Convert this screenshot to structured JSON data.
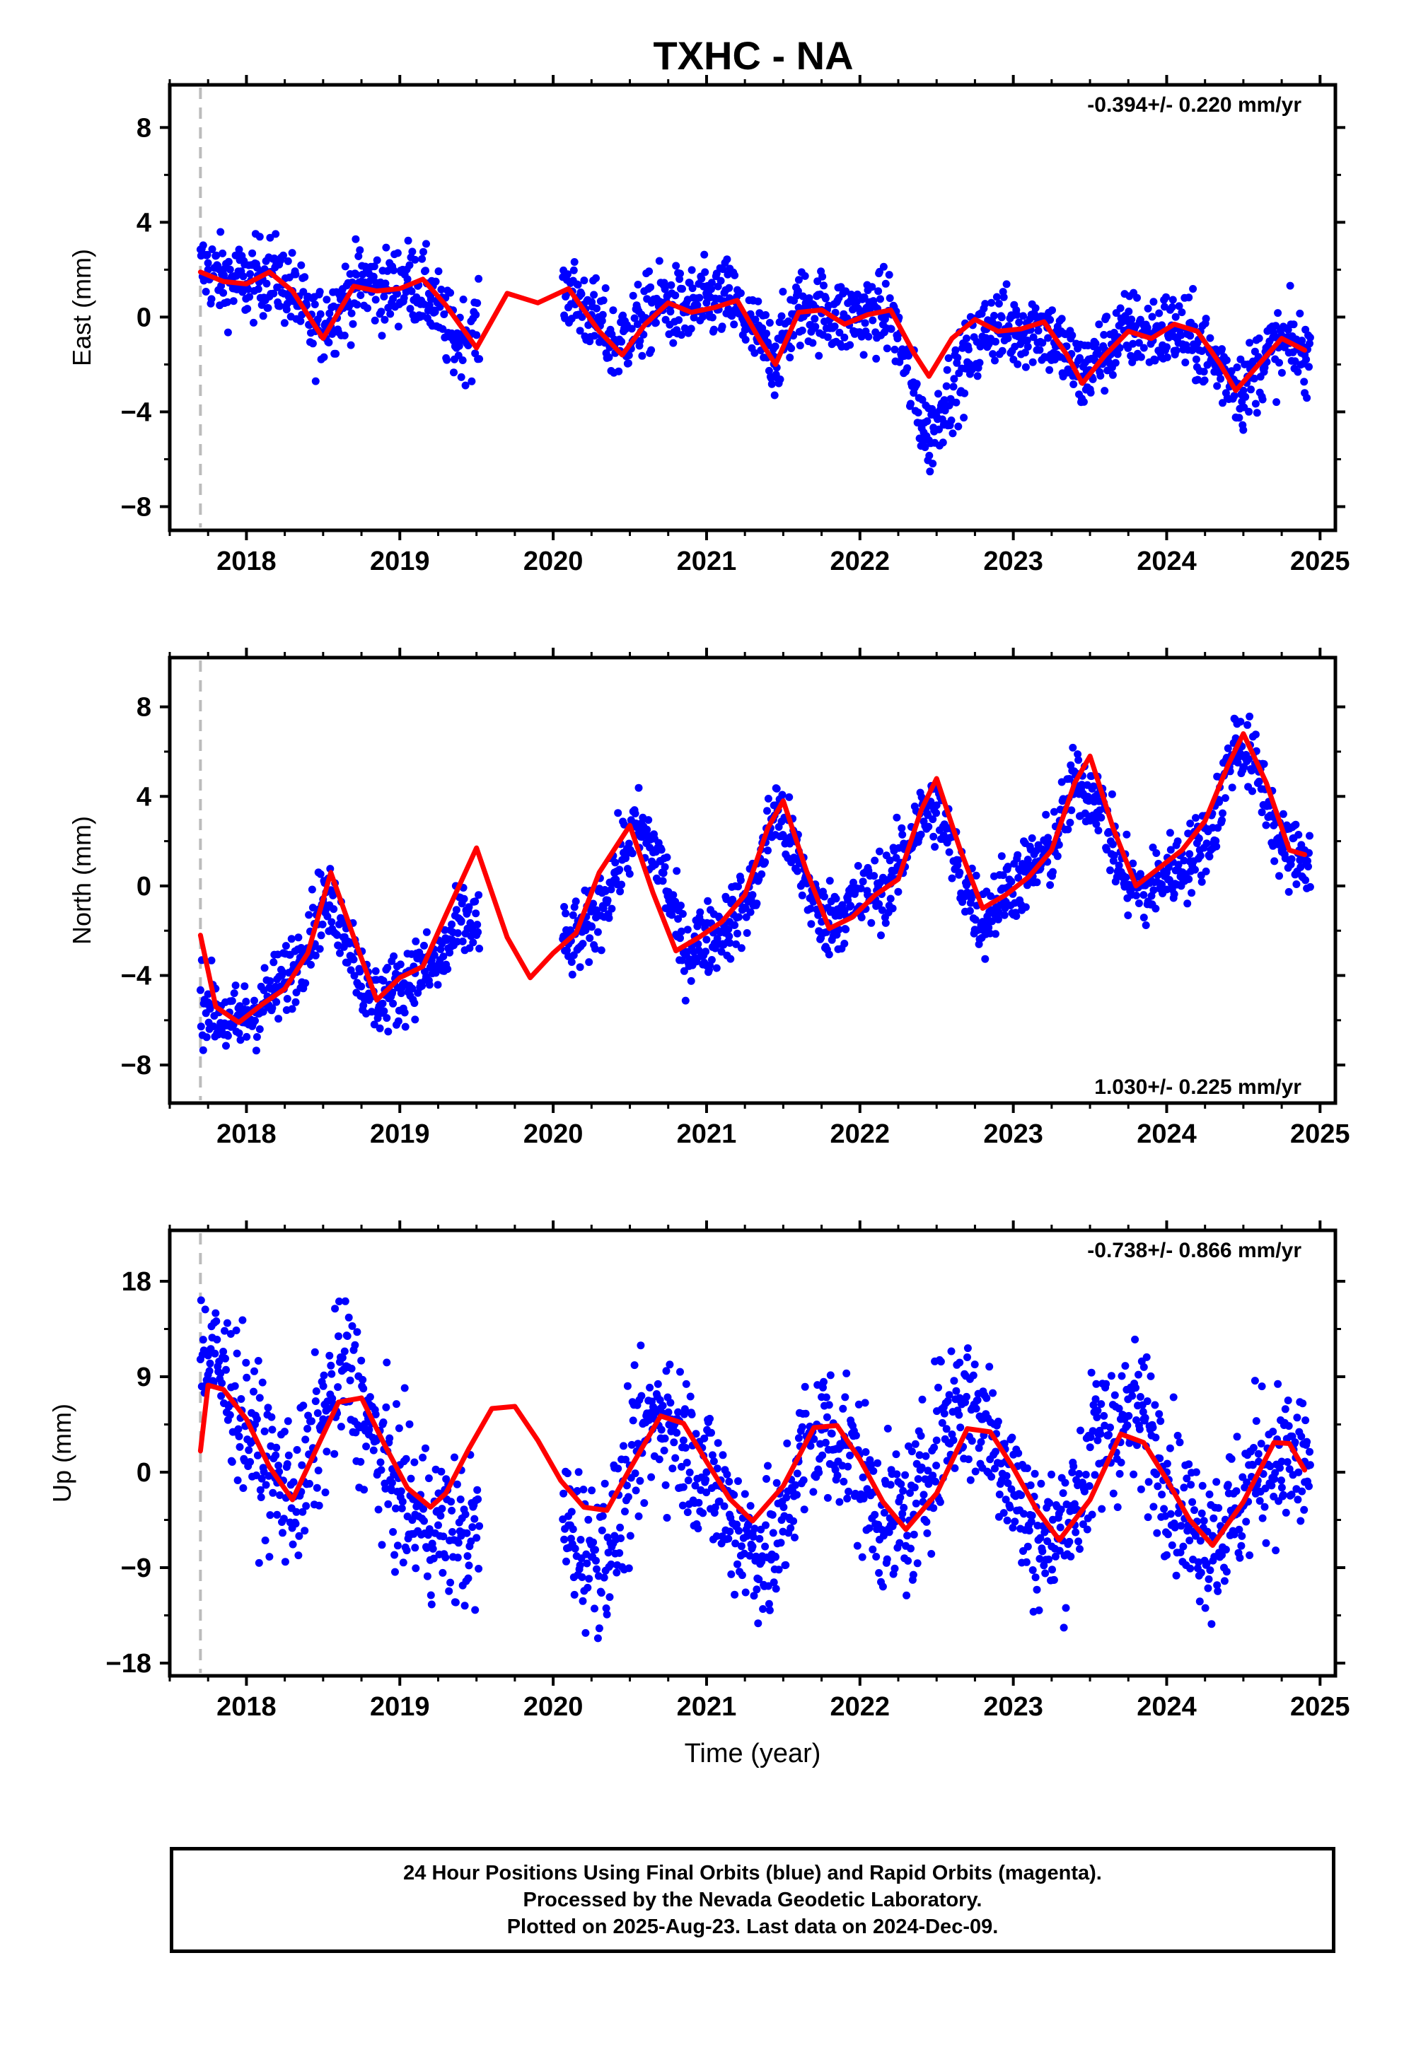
{
  "title": "TXHC - NA",
  "colors": {
    "final_orbits": "#0000ff",
    "model_fit": "#ff0000",
    "reference_line": "#bbbbbb",
    "frame": "#000000"
  },
  "xlabel": "Time (year)",
  "footer": {
    "line1": "24 Hour Positions Using Final Orbits (blue) and Rapid Orbits (magenta).",
    "line2": "Processed by the Nevada Geodetic Laboratory.",
    "line3": "Plotted on 2025-Aug-23. Last data on 2024-Dec-09."
  },
  "chart_data": [
    {
      "type": "scatter",
      "component": "east",
      "ylabel": "East (mm)",
      "rate_label": "-0.394+/- 0.220 mm/yr",
      "xlim": [
        2017.5,
        2025.1
      ],
      "ylim": [
        -9,
        9.8
      ],
      "xticks": [
        2018,
        2019,
        2020,
        2021,
        2022,
        2023,
        2024,
        2025
      ],
      "yticks": [
        -8,
        -4,
        0,
        4,
        8
      ],
      "reference_line_x": 2017.7,
      "data_start": 2017.7,
      "data_end": 2024.94,
      "gap": [
        2019.52,
        2020.06
      ],
      "series": [
        {
          "kind": "points",
          "x": [
            2017.75,
            2017.85,
            2018.0,
            2018.15,
            2018.3,
            2018.45,
            2018.6,
            2018.75,
            2018.9,
            2019.05,
            2019.2,
            2019.35,
            2020.1,
            2020.25,
            2020.4,
            2020.55,
            2020.7,
            2020.85,
            2021.0,
            2021.15,
            2021.3,
            2021.45,
            2021.6,
            2021.75,
            2021.9,
            2022.05,
            2022.2,
            2022.35,
            2022.45,
            2022.55,
            2022.7,
            2022.85,
            2023.0,
            2023.15,
            2023.3,
            2023.45,
            2023.6,
            2023.75,
            2023.9,
            2024.05,
            2024.2,
            2024.35,
            2024.5,
            2024.65,
            2024.8,
            2024.9
          ],
          "y": [
            2.0,
            1.6,
            1.4,
            1.9,
            1.1,
            -0.6,
            0.4,
            1.5,
            1.1,
            1.6,
            0.9,
            -1.0,
            1.1,
            0.1,
            -1.2,
            -0.3,
            0.6,
            0.3,
            0.6,
            0.8,
            -0.6,
            -1.7,
            0.4,
            0.3,
            -0.1,
            0.2,
            0.2,
            -3.2,
            -5.2,
            -3.5,
            -1.9,
            -0.2,
            -0.6,
            -0.3,
            -1.2,
            -2.5,
            -1.4,
            -0.5,
            -0.7,
            -0.5,
            -1.1,
            -2.1,
            -3.1,
            -1.6,
            -1.1,
            -1.6
          ]
        },
        {
          "kind": "model",
          "x": [
            2017.7,
            2017.85,
            2018.0,
            2018.15,
            2018.3,
            2018.5,
            2018.7,
            2018.85,
            2019.0,
            2019.15,
            2019.3,
            2019.5,
            2019.7,
            2019.9,
            2020.1,
            2020.3,
            2020.45,
            2020.6,
            2020.75,
            2020.9,
            2021.05,
            2021.2,
            2021.35,
            2021.45,
            2021.6,
            2021.75,
            2021.9,
            2022.05,
            2022.2,
            2022.35,
            2022.45,
            2022.6,
            2022.75,
            2022.9,
            2023.05,
            2023.2,
            2023.35,
            2023.45,
            2023.6,
            2023.75,
            2023.9,
            2024.05,
            2024.2,
            2024.35,
            2024.45,
            2024.6,
            2024.75,
            2024.9
          ],
          "y": [
            1.9,
            1.5,
            1.4,
            1.9,
            1.1,
            -0.9,
            1.3,
            1.1,
            1.2,
            1.6,
            0.5,
            -1.3,
            1.0,
            0.6,
            1.2,
            -0.6,
            -1.6,
            -0.3,
            0.6,
            0.2,
            0.4,
            0.7,
            -1.0,
            -2.0,
            0.2,
            0.3,
            -0.3,
            0.1,
            0.3,
            -1.5,
            -2.5,
            -0.9,
            -0.1,
            -0.6,
            -0.5,
            -0.2,
            -1.6,
            -2.8,
            -1.6,
            -0.6,
            -0.9,
            -0.3,
            -0.6,
            -2.0,
            -3.1,
            -2.0,
            -0.9,
            -1.4
          ]
        }
      ]
    },
    {
      "type": "scatter",
      "component": "north",
      "ylabel": "North (mm)",
      "rate_label": "1.030+/- 0.225 mm/yr",
      "xlim": [
        2017.5,
        2025.1
      ],
      "ylim": [
        -9.7,
        10.2
      ],
      "xticks": [
        2018,
        2019,
        2020,
        2021,
        2022,
        2023,
        2024,
        2025
      ],
      "yticks": [
        -8,
        -4,
        0,
        4,
        8
      ],
      "reference_line_x": 2017.7,
      "data_start": 2017.7,
      "data_end": 2024.94,
      "gap": [
        2019.52,
        2020.06
      ],
      "series": [
        {
          "kind": "points",
          "x": [
            2017.75,
            2017.9,
            2018.05,
            2018.2,
            2018.35,
            2018.5,
            2018.65,
            2018.8,
            2018.95,
            2019.1,
            2019.25,
            2019.4,
            2020.1,
            2020.25,
            2020.4,
            2020.55,
            2020.7,
            2020.85,
            2021.0,
            2021.15,
            2021.3,
            2021.45,
            2021.6,
            2021.75,
            2021.9,
            2022.05,
            2022.2,
            2022.35,
            2022.5,
            2022.65,
            2022.8,
            2022.95,
            2023.1,
            2023.25,
            2023.4,
            2023.55,
            2023.7,
            2023.85,
            2024.0,
            2024.15,
            2024.3,
            2024.45,
            2024.6,
            2024.75,
            2024.9
          ],
          "y": [
            -5.2,
            -6.3,
            -5.6,
            -4.6,
            -3.2,
            -0.6,
            -1.9,
            -5.1,
            -4.8,
            -3.9,
            -3.6,
            -1.6,
            -2.6,
            -1.8,
            0.6,
            2.6,
            1.1,
            -2.9,
            -2.4,
            -1.6,
            -0.4,
            3.6,
            1.1,
            -1.6,
            -1.1,
            -0.4,
            0.1,
            2.6,
            3.6,
            0.6,
            -1.6,
            -0.1,
            0.6,
            1.6,
            4.6,
            4.1,
            0.6,
            -0.4,
            0.6,
            1.1,
            2.6,
            6.6,
            5.1,
            1.6,
            1.3
          ]
        },
        {
          "kind": "model",
          "x": [
            2017.7,
            2017.8,
            2017.95,
            2018.1,
            2018.25,
            2018.4,
            2018.55,
            2018.7,
            2018.85,
            2019.0,
            2019.15,
            2019.3,
            2019.5,
            2019.7,
            2019.85,
            2020.0,
            2020.15,
            2020.3,
            2020.5,
            2020.65,
            2020.8,
            2020.95,
            2021.1,
            2021.25,
            2021.4,
            2021.5,
            2021.65,
            2021.8,
            2021.95,
            2022.1,
            2022.25,
            2022.4,
            2022.5,
            2022.65,
            2022.8,
            2022.95,
            2023.1,
            2023.25,
            2023.4,
            2023.5,
            2023.65,
            2023.8,
            2023.95,
            2024.1,
            2024.25,
            2024.4,
            2024.5,
            2024.65,
            2024.8,
            2024.9
          ],
          "y": [
            -2.2,
            -5.4,
            -6.1,
            -5.3,
            -4.6,
            -3.0,
            0.6,
            -2.3,
            -5.1,
            -4.1,
            -3.6,
            -1.3,
            1.7,
            -2.3,
            -4.1,
            -3.0,
            -2.1,
            0.6,
            2.7,
            -0.3,
            -2.9,
            -2.3,
            -1.6,
            -0.4,
            2.6,
            3.8,
            0.7,
            -1.9,
            -1.4,
            -0.4,
            0.3,
            3.4,
            4.8,
            1.7,
            -1.0,
            -0.4,
            0.4,
            1.6,
            4.6,
            5.8,
            2.6,
            0.0,
            0.8,
            1.6,
            2.9,
            5.4,
            6.8,
            4.6,
            1.6,
            1.4
          ]
        }
      ]
    },
    {
      "type": "scatter",
      "component": "up",
      "ylabel": "Up (mm)",
      "rate_label": "-0.738+/- 0.866 mm/yr",
      "xlim": [
        2017.5,
        2025.1
      ],
      "ylim": [
        -19.2,
        22.8
      ],
      "xticks": [
        2018,
        2019,
        2020,
        2021,
        2022,
        2023,
        2024,
        2025
      ],
      "yticks": [
        -18,
        -9,
        0,
        9,
        18
      ],
      "reference_line_x": 2017.7,
      "data_start": 2017.7,
      "data_end": 2024.94,
      "gap": [
        2019.52,
        2020.06
      ],
      "series": [
        {
          "kind": "points",
          "x": [
            2017.75,
            2017.9,
            2018.05,
            2018.2,
            2018.35,
            2018.5,
            2018.65,
            2018.8,
            2018.95,
            2019.1,
            2019.25,
            2019.4,
            2020.1,
            2020.25,
            2020.4,
            2020.55,
            2020.7,
            2020.85,
            2021.0,
            2021.15,
            2021.3,
            2021.45,
            2021.6,
            2021.75,
            2021.9,
            2022.05,
            2022.2,
            2022.35,
            2022.5,
            2022.65,
            2022.8,
            2022.95,
            2023.1,
            2023.25,
            2023.4,
            2023.55,
            2023.7,
            2023.85,
            2024.0,
            2024.15,
            2024.3,
            2024.45,
            2024.6,
            2024.75,
            2024.9
          ],
          "y": [
            11.0,
            8.0,
            3.0,
            -1.0,
            -2.0,
            5.0,
            10.0,
            4.0,
            -1.0,
            -4.0,
            -5.0,
            -6.0,
            -5.0,
            -8.0,
            -6.0,
            2.0,
            6.0,
            3.0,
            0.0,
            -4.0,
            -7.0,
            -8.0,
            1.0,
            4.0,
            3.0,
            -2.0,
            -5.0,
            -4.0,
            3.0,
            7.0,
            5.0,
            1.0,
            -5.0,
            -7.0,
            -3.0,
            3.0,
            5.0,
            5.0,
            0.0,
            -5.0,
            -6.0,
            -4.0,
            1.0,
            1.0,
            1.0
          ]
        },
        {
          "kind": "model",
          "x": [
            2017.7,
            2017.75,
            2017.85,
            2018.0,
            2018.15,
            2018.3,
            2018.45,
            2018.6,
            2018.75,
            2018.9,
            2019.05,
            2019.2,
            2019.3,
            2019.45,
            2019.6,
            2019.75,
            2019.9,
            2020.05,
            2020.2,
            2020.35,
            2020.5,
            2020.7,
            2020.85,
            2021.0,
            2021.15,
            2021.3,
            2021.5,
            2021.7,
            2021.85,
            2022.0,
            2022.15,
            2022.3,
            2022.5,
            2022.7,
            2022.85,
            2023.0,
            2023.15,
            2023.3,
            2023.5,
            2023.7,
            2023.85,
            2024.0,
            2024.15,
            2024.3,
            2024.5,
            2024.7,
            2024.8,
            2024.9
          ],
          "y": [
            2.0,
            8.2,
            7.8,
            5.0,
            0.5,
            -2.6,
            2.0,
            6.6,
            7.0,
            2.6,
            -1.5,
            -3.3,
            -2.0,
            2.2,
            6.0,
            6.2,
            3.0,
            -0.8,
            -3.3,
            -3.6,
            0.3,
            5.3,
            4.6,
            1.0,
            -2.5,
            -4.6,
            -1.3,
            4.2,
            4.4,
            1.2,
            -2.8,
            -5.4,
            -2.0,
            4.1,
            3.8,
            0.4,
            -3.5,
            -6.4,
            -2.6,
            3.6,
            2.8,
            -0.7,
            -4.5,
            -6.9,
            -2.8,
            2.8,
            2.7,
            0.2
          ]
        }
      ]
    }
  ]
}
